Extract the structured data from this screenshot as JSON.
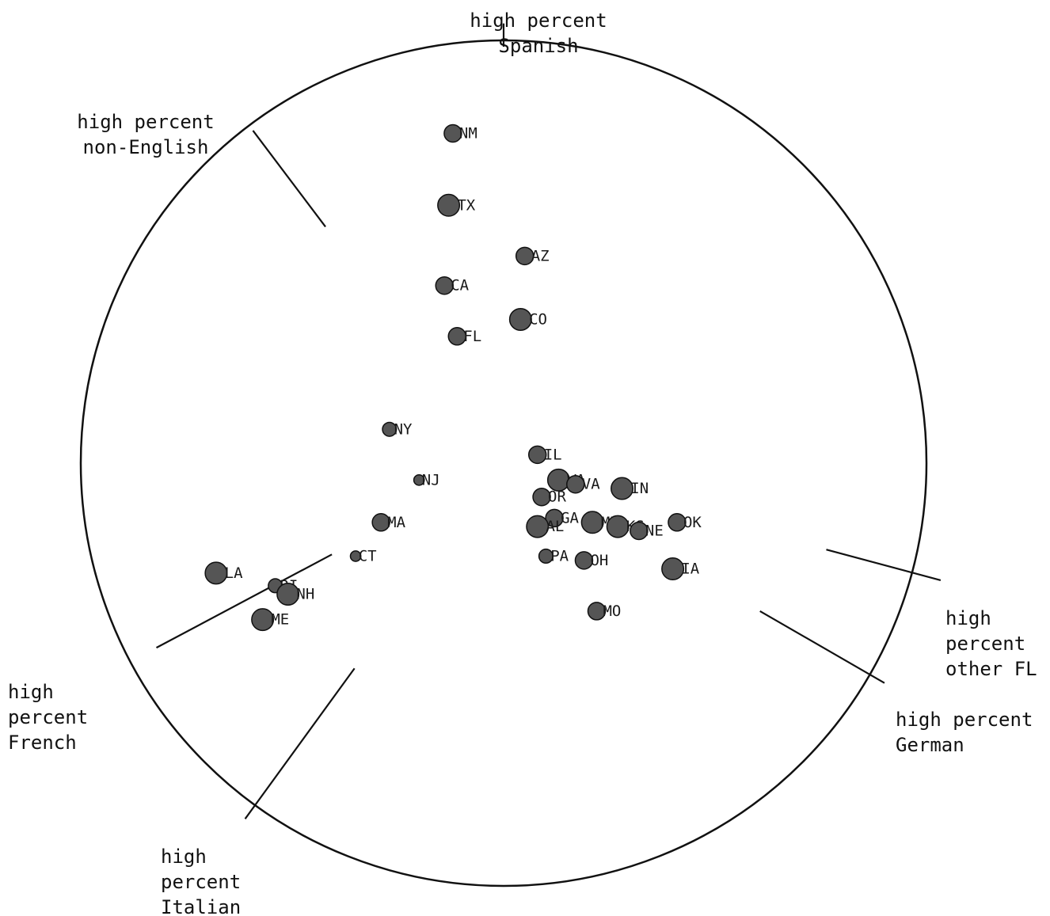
{
  "chart_data": {
    "type": "scatter",
    "title": "",
    "xlabel": "",
    "ylabel": "",
    "grid": false,
    "legend": "none",
    "colors": {
      "point": "#555555",
      "outline": "#111111"
    },
    "axes": [
      {
        "id": "spanish",
        "lines": [
          "high percent",
          "Spanish"
        ],
        "angle_deg": 90
      },
      {
        "id": "non-english",
        "lines": [
          "high percent",
          "non-English"
        ],
        "angle_deg": 127
      },
      {
        "id": "french",
        "lines": [
          "high",
          "percent",
          "French"
        ],
        "angle_deg": 208
      },
      {
        "id": "italian",
        "lines": [
          "high",
          "percent",
          "Italian"
        ],
        "angle_deg": 234
      },
      {
        "id": "german",
        "lines": [
          "high percent",
          "German"
        ],
        "angle_deg": 330
      },
      {
        "id": "other-fl",
        "lines": [
          "high",
          "percent",
          "other FL"
        ],
        "angle_deg": 345
      }
    ],
    "points": [
      {
        "label": "NM",
        "x": -0.12,
        "y": 0.78,
        "size": 1.0
      },
      {
        "label": "TX",
        "x": -0.13,
        "y": 0.61,
        "size": 1.25
      },
      {
        "label": "AZ",
        "x": 0.05,
        "y": 0.49,
        "size": 1.0
      },
      {
        "label": "CA",
        "x": -0.14,
        "y": 0.42,
        "size": 1.0
      },
      {
        "label": "CO",
        "x": 0.04,
        "y": 0.34,
        "size": 1.25
      },
      {
        "label": "FL",
        "x": -0.11,
        "y": 0.3,
        "size": 1.0
      },
      {
        "label": "NY",
        "x": -0.27,
        "y": 0.08,
        "size": 0.8
      },
      {
        "label": "NJ",
        "x": -0.2,
        "y": -0.04,
        "size": 0.6
      },
      {
        "label": "MA",
        "x": -0.29,
        "y": -0.14,
        "size": 1.0
      },
      {
        "label": "CT",
        "x": -0.35,
        "y": -0.22,
        "size": 0.6
      },
      {
        "label": "LA",
        "x": -0.68,
        "y": -0.26,
        "size": 1.25
      },
      {
        "label": "RI",
        "x": -0.54,
        "y": -0.29,
        "size": 0.8
      },
      {
        "label": "NH",
        "x": -0.51,
        "y": -0.31,
        "size": 1.25
      },
      {
        "label": "ME",
        "x": -0.57,
        "y": -0.37,
        "size": 1.25
      },
      {
        "label": "IL",
        "x": 0.08,
        "y": 0.02,
        "size": 1.0
      },
      {
        "label": "WA",
        "x": 0.13,
        "y": -0.04,
        "size": 1.25
      },
      {
        "label": "VA",
        "x": 0.17,
        "y": -0.05,
        "size": 1.0
      },
      {
        "label": "IN",
        "x": 0.28,
        "y": -0.06,
        "size": 1.25
      },
      {
        "label": "OR",
        "x": 0.09,
        "y": -0.08,
        "size": 1.0
      },
      {
        "label": "GA",
        "x": 0.12,
        "y": -0.13,
        "size": 1.0
      },
      {
        "label": "AL",
        "x": 0.08,
        "y": -0.15,
        "size": 1.25
      },
      {
        "label": "MN",
        "x": 0.21,
        "y": -0.14,
        "size": 1.25
      },
      {
        "label": "KS",
        "x": 0.27,
        "y": -0.15,
        "size": 1.25
      },
      {
        "label": "NE",
        "x": 0.32,
        "y": -0.16,
        "size": 1.0
      },
      {
        "label": "OK",
        "x": 0.41,
        "y": -0.14,
        "size": 1.0
      },
      {
        "label": "PA",
        "x": 0.1,
        "y": -0.22,
        "size": 0.8
      },
      {
        "label": "OH",
        "x": 0.19,
        "y": -0.23,
        "size": 1.0
      },
      {
        "label": "IA",
        "x": 0.4,
        "y": -0.25,
        "size": 1.25
      },
      {
        "label": "MO",
        "x": 0.22,
        "y": -0.35,
        "size": 1.0
      }
    ]
  }
}
